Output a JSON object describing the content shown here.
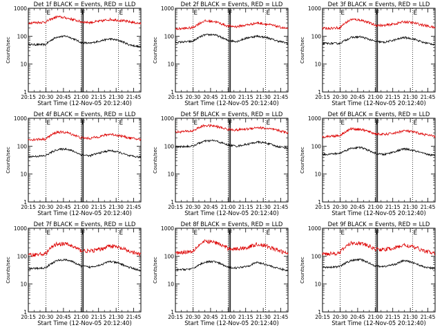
{
  "colors": {
    "events": "#000000",
    "lld": "#dd0000",
    "axes": "#000000",
    "background": "#ffffff"
  },
  "chart_data": [
    {
      "type": "line",
      "title": "Det 1f BLACK = Events, RED = LLD",
      "xlabel": "Start Time (12-Nov-05 20:12:40)",
      "ylabel": "Counts/sec",
      "yscale": "log",
      "ylim": [
        1,
        1000
      ],
      "x_ticks": [
        "20:15",
        "20:30",
        "20:45",
        "21:00",
        "21:15",
        "21:30",
        "21:45"
      ],
      "y_ticks": [
        "1",
        "10",
        "100",
        "1000"
      ],
      "x_range_min": [
        2.3,
        98.5
      ],
      "vlines_min": [
        17.3,
        47.3,
        79.3
      ],
      "vline_labels": [
        "E",
        "F",
        "E"
      ],
      "double_vline_min": [
        48.3,
        49.3
      ],
      "series": [
        {
          "color": "black",
          "x_min": [
            2.3,
            17,
            27,
            35,
            47,
            55,
            65,
            72,
            80,
            88,
            98.5
          ],
          "values": [
            50,
            50,
            95,
            100,
            60,
            55,
            70,
            80,
            70,
            50,
            40
          ]
        },
        {
          "color": "red",
          "x_min": [
            2.3,
            17,
            27,
            35,
            47,
            55,
            65,
            72,
            80,
            88,
            98.5
          ],
          "values": [
            300,
            320,
            500,
            450,
            330,
            310,
            350,
            400,
            370,
            330,
            280
          ]
        }
      ]
    },
    {
      "type": "line",
      "title": "Det 2f BLACK = Events, RED = LLD",
      "xlabel": "Start Time (12-Nov-05 20:12:40)",
      "ylabel": "Counts/sec",
      "yscale": "log",
      "ylim": [
        1,
        1000
      ],
      "x_ticks": [
        "20:15",
        "20:30",
        "20:45",
        "21:00",
        "21:15",
        "21:30",
        "21:45"
      ],
      "y_ticks": [
        "1",
        "10",
        "100",
        "1000"
      ],
      "x_range_min": [
        2.3,
        98.5
      ],
      "vlines_min": [
        17.3,
        47.3,
        79.3
      ],
      "vline_labels": [
        "E",
        "F",
        "E"
      ],
      "double_vline_min": [
        48.3,
        49.3
      ],
      "series": [
        {
          "color": "black",
          "x_min": [
            2.3,
            17,
            27,
            35,
            47,
            55,
            65,
            72,
            80,
            88,
            98.5
          ],
          "values": [
            60,
            65,
            110,
            115,
            70,
            65,
            90,
            100,
            90,
            70,
            55
          ]
        },
        {
          "color": "red",
          "x_min": [
            2.3,
            17,
            27,
            35,
            47,
            55,
            65,
            72,
            80,
            88,
            98.5
          ],
          "values": [
            180,
            200,
            350,
            340,
            230,
            220,
            260,
            300,
            270,
            230,
            180
          ]
        }
      ]
    },
    {
      "type": "line",
      "title": "Det 3f BLACK = Events, RED = LLD",
      "xlabel": "Start Time (12-Nov-05 20:12:40)",
      "ylabel": "Counts/sec",
      "yscale": "log",
      "ylim": [
        1,
        1000
      ],
      "x_ticks": [
        "20:15",
        "20:30",
        "20:45",
        "21:00",
        "21:15",
        "21:30",
        "21:45"
      ],
      "y_ticks": [
        "1",
        "10",
        "100",
        "1000"
      ],
      "x_range_min": [
        2.3,
        98.5
      ],
      "vlines_min": [
        17.3,
        47.3,
        79.3
      ],
      "vline_labels": [
        "E",
        "F",
        "E"
      ],
      "double_vline_min": [
        48.3,
        49.3
      ],
      "series": [
        {
          "color": "black",
          "x_min": [
            2.3,
            17,
            27,
            35,
            47,
            55,
            65,
            72,
            80,
            88,
            98.5
          ],
          "values": [
            55,
            55,
            90,
            95,
            65,
            60,
            75,
            90,
            80,
            60,
            50
          ]
        },
        {
          "color": "red",
          "x_min": [
            2.3,
            17,
            27,
            35,
            47,
            55,
            65,
            72,
            80,
            88,
            98.5
          ],
          "values": [
            190,
            200,
            400,
            380,
            250,
            240,
            280,
            330,
            300,
            250,
            200
          ]
        }
      ]
    },
    {
      "type": "line",
      "title": "Det 4f BLACK = Events, RED = LLD",
      "xlabel": "Start Time (12-Nov-05 20:12:40)",
      "ylabel": "Counts/sec",
      "yscale": "log",
      "ylim": [
        1,
        1000
      ],
      "x_ticks": [
        "20:15",
        "20:30",
        "20:45",
        "21:00",
        "21:15",
        "21:30",
        "21:45"
      ],
      "y_ticks": [
        "1",
        "10",
        "100",
        "1000"
      ],
      "x_range_min": [
        2.3,
        98.5
      ],
      "vlines_min": [
        17.3,
        47.3,
        79.3
      ],
      "vline_labels": [
        "E",
        "F",
        "E"
      ],
      "double_vline_min": [
        48.3,
        49.3
      ],
      "series": [
        {
          "color": "black",
          "x_min": [
            2.3,
            17,
            27,
            35,
            47,
            55,
            65,
            72,
            80,
            88,
            98.5
          ],
          "values": [
            42,
            45,
            75,
            80,
            50,
            45,
            60,
            70,
            60,
            45,
            40
          ]
        },
        {
          "color": "red",
          "x_min": [
            2.3,
            17,
            27,
            35,
            47,
            55,
            65,
            72,
            80,
            88,
            98.5
          ],
          "values": [
            170,
            180,
            320,
            310,
            200,
            190,
            230,
            270,
            240,
            200,
            170
          ]
        }
      ]
    },
    {
      "type": "line",
      "title": "Det 5f BLACK = Events, RED = LLD",
      "xlabel": "Start Time (12-Nov-05 20:12:40)",
      "ylabel": "Counts/sec",
      "yscale": "log",
      "ylim": [
        1,
        1000
      ],
      "x_ticks": [
        "20:15",
        "20:30",
        "20:45",
        "21:00",
        "21:15",
        "21:30",
        "21:45"
      ],
      "y_ticks": [
        "1",
        "10",
        "100",
        "1000"
      ],
      "x_range_min": [
        2.3,
        98.5
      ],
      "vlines_min": [
        17.3,
        47.3,
        79.3
      ],
      "vline_labels": [
        "E",
        "F",
        "E"
      ],
      "double_vline_min": [
        48.3,
        49.3
      ],
      "series": [
        {
          "color": "black",
          "x_min": [
            2.3,
            17,
            27,
            35,
            47,
            55,
            65,
            72,
            80,
            88,
            98.5
          ],
          "values": [
            95,
            100,
            150,
            160,
            110,
            100,
            120,
            140,
            130,
            100,
            85
          ]
        },
        {
          "color": "red",
          "x_min": [
            2.3,
            17,
            27,
            35,
            47,
            55,
            65,
            72,
            80,
            88,
            98.5
          ],
          "values": [
            320,
            350,
            550,
            530,
            400,
            380,
            420,
            470,
            430,
            380,
            300
          ]
        }
      ]
    },
    {
      "type": "line",
      "title": "Det 6f BLACK = Events, RED = LLD",
      "xlabel": "Start Time (12-Nov-05 20:12:40)",
      "ylabel": "Counts/sec",
      "yscale": "log",
      "ylim": [
        1,
        1000
      ],
      "x_ticks": [
        "20:15",
        "20:30",
        "20:45",
        "21:00",
        "21:15",
        "21:30",
        "21:45"
      ],
      "y_ticks": [
        "1",
        "10",
        "100",
        "1000"
      ],
      "x_range_min": [
        2.3,
        98.5
      ],
      "vlines_min": [
        17.3,
        47.3,
        79.3
      ],
      "vline_labels": [
        "E",
        "F",
        "E"
      ],
      "double_vline_min": [
        48.3,
        49.3
      ],
      "series": [
        {
          "color": "black",
          "x_min": [
            2.3,
            17,
            27,
            35,
            47,
            55,
            65,
            72,
            80,
            88,
            98.5
          ],
          "values": [
            50,
            55,
            85,
            90,
            55,
            50,
            65,
            80,
            70,
            55,
            45
          ]
        },
        {
          "color": "red",
          "x_min": [
            2.3,
            17,
            27,
            35,
            47,
            55,
            65,
            72,
            80,
            88,
            98.5
          ],
          "values": [
            220,
            240,
            420,
            400,
            280,
            260,
            300,
            360,
            320,
            270,
            220
          ]
        }
      ]
    },
    {
      "type": "line",
      "title": "Det 7f BLACK = Events, RED = LLD",
      "xlabel": "Start Time (12-Nov-05 20:12:40)",
      "ylabel": "Counts/sec",
      "yscale": "log",
      "ylim": [
        1,
        1000
      ],
      "x_ticks": [
        "20:15",
        "20:30",
        "20:45",
        "21:00",
        "21:15",
        "21:30",
        "21:45"
      ],
      "y_ticks": [
        "1",
        "10",
        "100",
        "1000"
      ],
      "x_range_min": [
        2.3,
        98.5
      ],
      "vlines_min": [
        17.3,
        47.3,
        79.3
      ],
      "vline_labels": [
        "E",
        "F",
        "E"
      ],
      "double_vline_min": [
        48.3,
        49.3
      ],
      "series": [
        {
          "color": "black",
          "x_min": [
            2.3,
            17,
            27,
            35,
            47,
            55,
            65,
            72,
            80,
            88,
            98.5
          ],
          "values": [
            35,
            38,
            70,
            75,
            45,
            40,
            50,
            65,
            55,
            40,
            30
          ]
        },
        {
          "color": "red",
          "x_min": [
            2.3,
            17,
            27,
            35,
            47,
            55,
            65,
            72,
            80,
            88,
            98.5
          ],
          "values": [
            110,
            120,
            280,
            270,
            160,
            150,
            180,
            240,
            200,
            150,
            110
          ]
        }
      ]
    },
    {
      "type": "line",
      "title": "Det 8f BLACK = Events, RED = LLD",
      "xlabel": "Start Time (12-Nov-05 20:12:40)",
      "ylabel": "Counts/sec",
      "yscale": "log",
      "ylim": [
        1,
        1000
      ],
      "x_ticks": [
        "20:15",
        "20:30",
        "20:45",
        "21:00",
        "21:15",
        "21:30",
        "21:45"
      ],
      "y_ticks": [
        "1",
        "10",
        "100",
        "1000"
      ],
      "x_range_min": [
        2.3,
        98.5
      ],
      "vlines_min": [
        17.3,
        47.3,
        79.3
      ],
      "vline_labels": [
        "E",
        "F",
        "E"
      ],
      "double_vline_min": [
        48.3,
        49.3
      ],
      "series": [
        {
          "color": "black",
          "x_min": [
            2.3,
            17,
            27,
            35,
            47,
            55,
            65,
            72,
            80,
            88,
            98.5
          ],
          "values": [
            32,
            35,
            60,
            65,
            40,
            38,
            45,
            60,
            50,
            38,
            30
          ]
        },
        {
          "color": "red",
          "x_min": [
            2.3,
            17,
            27,
            35,
            47,
            55,
            65,
            72,
            80,
            88,
            98.5
          ],
          "values": [
            130,
            150,
            330,
            320,
            190,
            180,
            210,
            270,
            230,
            170,
            120
          ]
        }
      ]
    },
    {
      "type": "line",
      "title": "Det 9f BLACK = Events, RED = LLD",
      "xlabel": "Start Time (12-Nov-05 20:12:40)",
      "ylabel": "Counts/sec",
      "yscale": "log",
      "ylim": [
        1,
        1000
      ],
      "x_ticks": [
        "20:15",
        "20:30",
        "20:45",
        "21:00",
        "21:15",
        "21:30",
        "21:45"
      ],
      "y_ticks": [
        "1",
        "10",
        "100",
        "1000"
      ],
      "x_range_min": [
        2.3,
        98.5
      ],
      "vlines_min": [
        17.3,
        47.3,
        79.3
      ],
      "vline_labels": [
        "E",
        "F",
        "E"
      ],
      "double_vline_min": [
        48.3,
        49.3
      ],
      "series": [
        {
          "color": "black",
          "x_min": [
            2.3,
            17,
            27,
            35,
            47,
            55,
            65,
            72,
            80,
            88,
            98.5
          ],
          "values": [
            40,
            42,
            70,
            75,
            45,
            42,
            52,
            70,
            58,
            42,
            35
          ]
        },
        {
          "color": "red",
          "x_min": [
            2.3,
            17,
            27,
            35,
            47,
            55,
            65,
            72,
            80,
            88,
            98.5
          ],
          "values": [
            120,
            130,
            300,
            290,
            180,
            170,
            200,
            250,
            210,
            160,
            120
          ]
        }
      ]
    }
  ]
}
